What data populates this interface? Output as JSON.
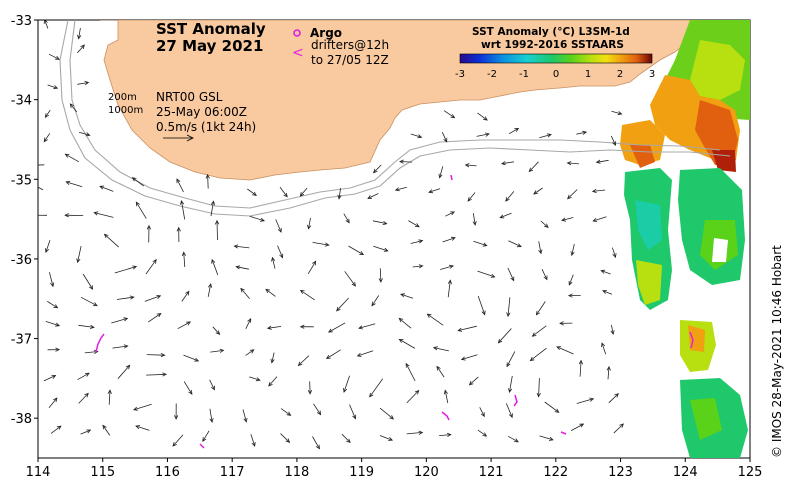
{
  "title": {
    "line1": "SST Anomaly",
    "line2": "27 May 2021"
  },
  "argo": {
    "label": "Argo",
    "symbol": "o"
  },
  "drifters": {
    "symbol": "<",
    "line1": "drifters@12h",
    "line2": "to 27/05 12Z"
  },
  "isobaths": {
    "shallow": "200m",
    "deep": "1000m"
  },
  "currents": {
    "source": "NRT00 GSL",
    "time": "25-May 06:00Z",
    "scale": "0.5m/s (1kt 24h)"
  },
  "colorbar": {
    "title1": "SST Anomaly (°C) L3SM-1d",
    "title2": "wrt 1992-2016 SSTAARS",
    "ticks": [
      "-3",
      "-2",
      "-1",
      "0",
      "1",
      "2",
      "3"
    ],
    "colors": [
      "#2b0a8a",
      "#0b2fd6",
      "#0b8fe0",
      "#18d0d0",
      "#1fc86a",
      "#5ad21a",
      "#b8e010",
      "#f0e010",
      "#f0a010",
      "#e06010",
      "#b02008",
      "#6a0404"
    ]
  },
  "credit": "© IMOS 28-May-2021 10:46 Hobart",
  "axes": {
    "x_ticks": [
      "114",
      "115",
      "116",
      "117",
      "118",
      "119",
      "120",
      "121",
      "122",
      "123",
      "124",
      "125"
    ],
    "y_ticks": [
      "-33",
      "-34",
      "-35",
      "-36",
      "-37",
      "-38"
    ],
    "lon_range": [
      114,
      125
    ],
    "lat_range": [
      -38.5,
      -33
    ]
  },
  "colors": {
    "land": "#f9c9a0",
    "argo": "#e020e0",
    "drifter": "#e020e0",
    "isobath": "#a8a8a8"
  }
}
